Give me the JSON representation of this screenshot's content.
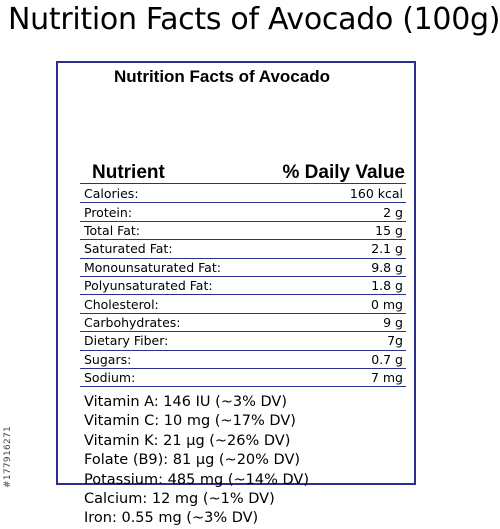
{
  "headline": "Nutrition Facts of Avocado (100g)",
  "panel": {
    "title": "Nutrition Facts of Avocado",
    "col_nutrient": "Nutrient",
    "col_value": "% Daily Value"
  },
  "rows": [
    {
      "name": "Calories:",
      "value": "160 kcal"
    },
    {
      "name": "Protein:",
      "value": "2 g"
    },
    {
      "name": "Total Fat:",
      "value": "15 g"
    },
    {
      "name": "Saturated Fat:",
      "value": "2.1 g"
    },
    {
      "name": "Monounsaturated Fat:",
      "value": "9.8 g"
    },
    {
      "name": "Polyunsaturated Fat:",
      "value": "1.8 g"
    },
    {
      "name": "Cholesterol:",
      "value": "0 mg"
    },
    {
      "name": "Carbohydrates:",
      "value": "9 g"
    },
    {
      "name": "Dietary Fiber:",
      "value": "7g"
    },
    {
      "name": "Sugars:",
      "value": "0.7 g"
    },
    {
      "name": "Sodium:",
      "value": "7 mg"
    }
  ],
  "vitamins": [
    "Vitamin A: 146 IU (~3% DV)",
    "Vitamin C: 10 mg (~17% DV)",
    "Vitamin K: 21 µg (~26% DV)",
    "Folate (B9): 81 µg (~20% DV)",
    "Potassium: 485 mg (~14% DV)",
    "Calcium: 12 mg (~1% DV)",
    "Iron: 0.55 mg (~3% DV)"
  ],
  "watermark": "#177916271",
  "colors": {
    "border": "#2e2e8c",
    "text": "#000000",
    "background": "#ffffff"
  }
}
